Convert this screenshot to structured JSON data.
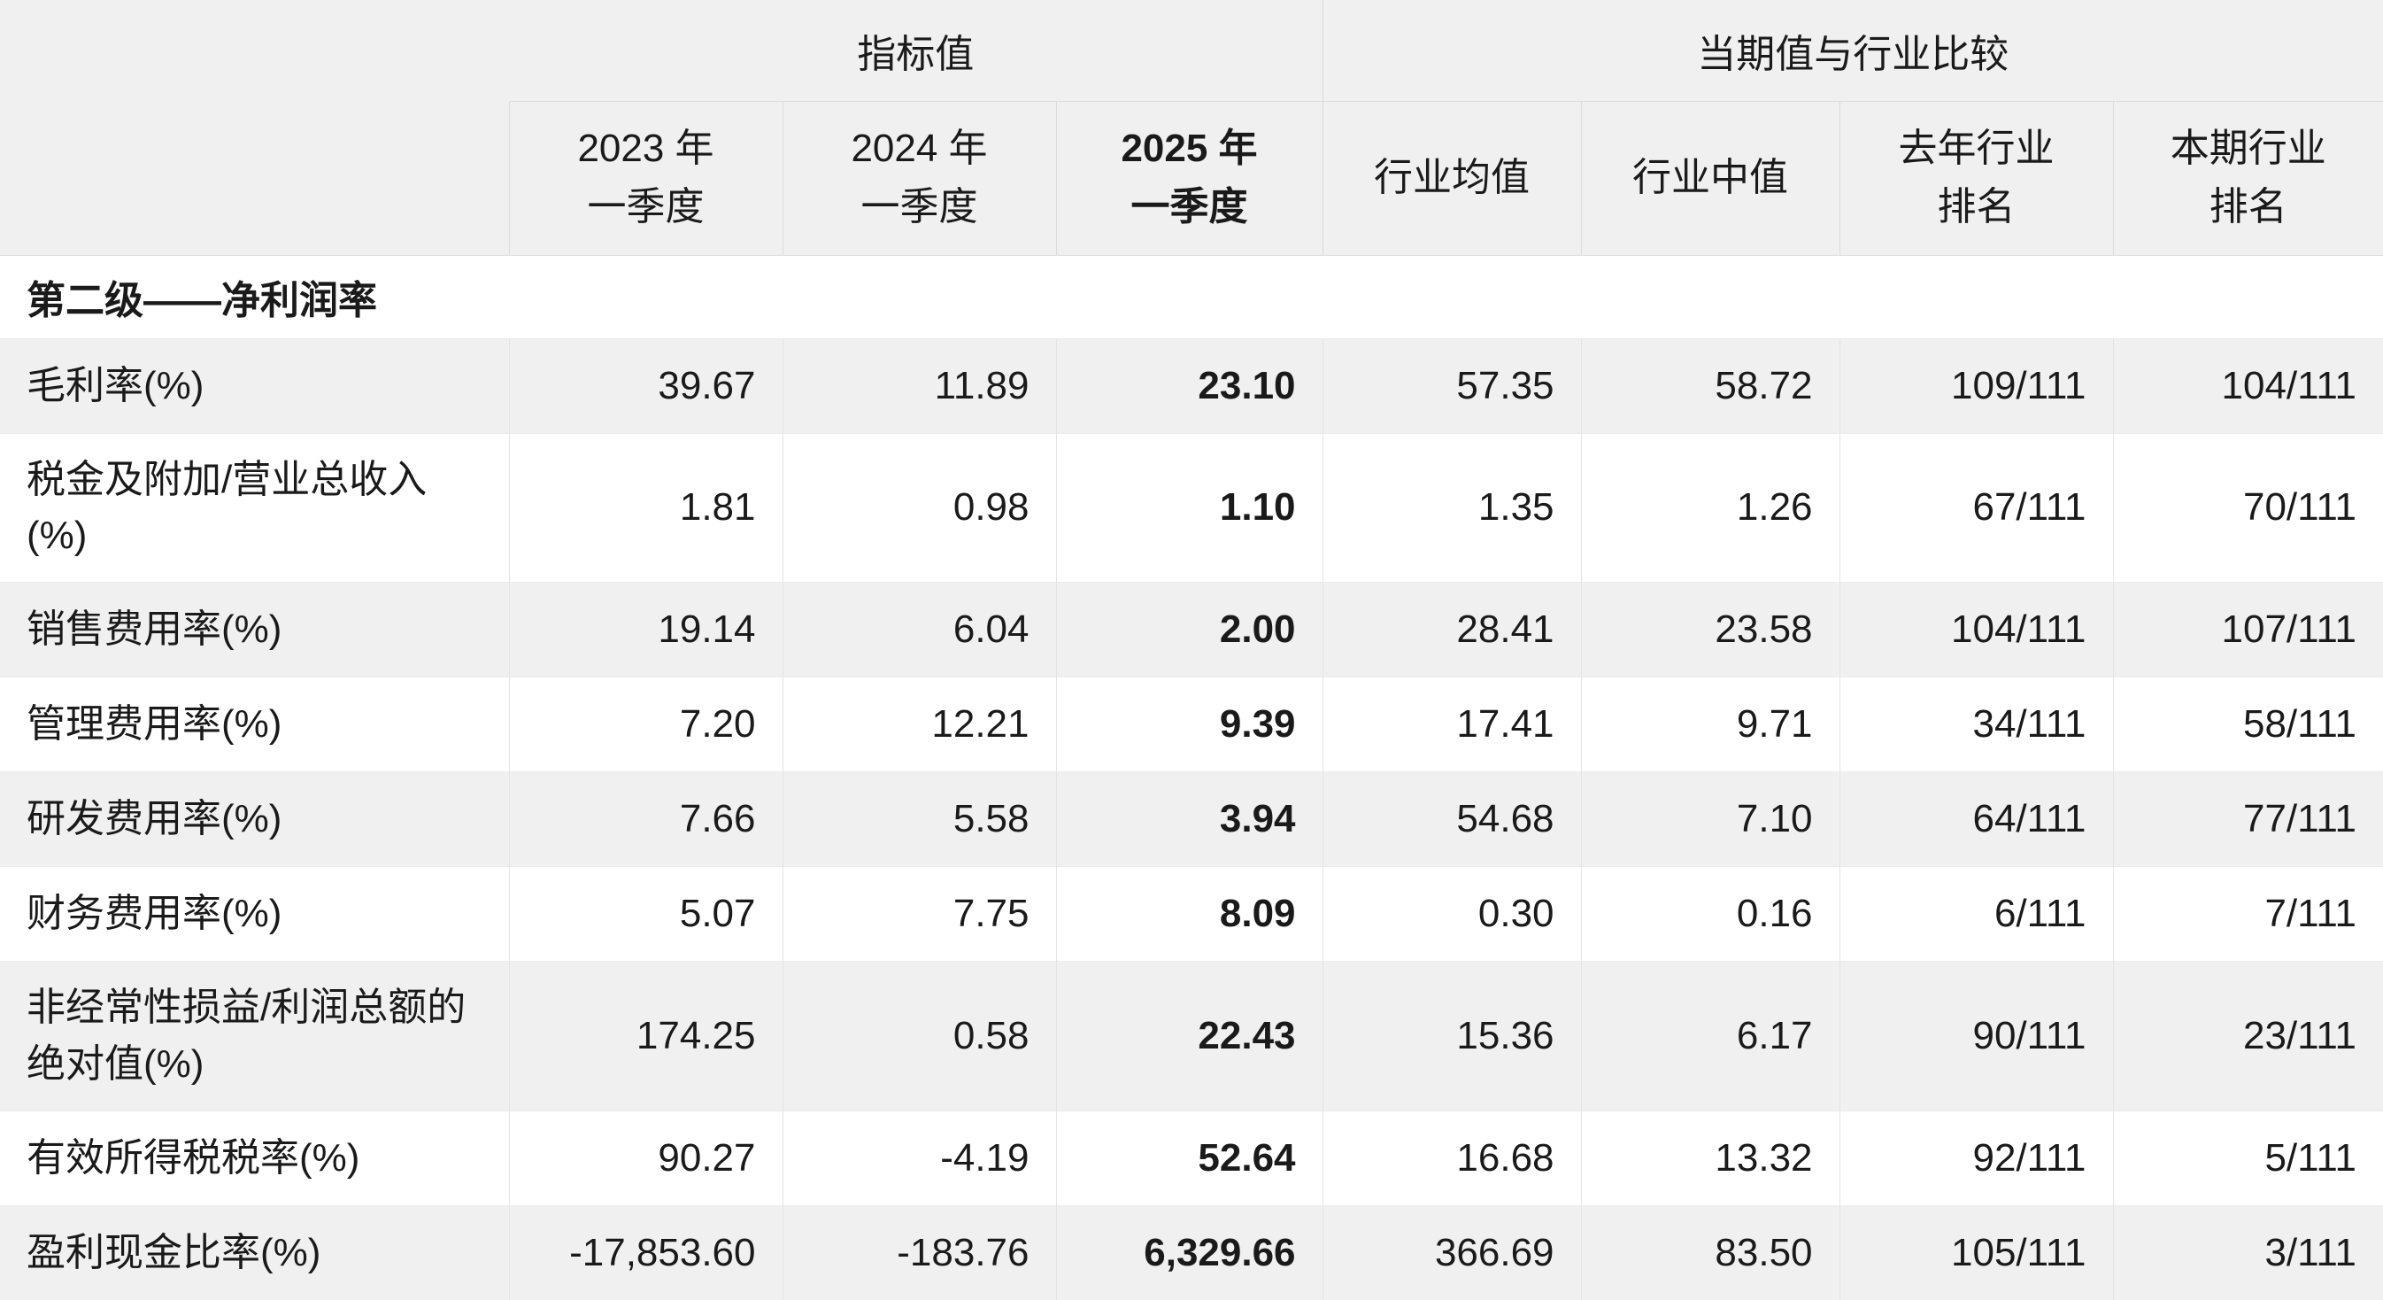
{
  "chart_data": {
    "type": "table",
    "title": "",
    "group_headers": [
      {
        "label": "指标值",
        "span": 3
      },
      {
        "label": "当期值与行业比较",
        "span": 4
      }
    ],
    "columns": [
      {
        "lines": [
          "2023 年",
          "一季度"
        ],
        "bold": false
      },
      {
        "lines": [
          "2024 年",
          "一季度"
        ],
        "bold": false
      },
      {
        "lines": [
          "2025 年",
          "一季度"
        ],
        "bold": true
      },
      {
        "lines": [
          "行业均值"
        ],
        "bold": false
      },
      {
        "lines": [
          "行业中值"
        ],
        "bold": false
      },
      {
        "lines": [
          "去年行业",
          "排名"
        ],
        "bold": false
      },
      {
        "lines": [
          "本期行业",
          "排名"
        ],
        "bold": false
      }
    ],
    "section_title": "第二级——净利润率",
    "bold_column_index": 2,
    "rows": [
      {
        "label": "毛利率(%)",
        "values": [
          "39.67",
          "11.89",
          "23.10",
          "57.35",
          "58.72",
          "109/111",
          "104/111"
        ]
      },
      {
        "label": "税金及附加/营业总收入(%)",
        "values": [
          "1.81",
          "0.98",
          "1.10",
          "1.35",
          "1.26",
          "67/111",
          "70/111"
        ]
      },
      {
        "label": "销售费用率(%)",
        "values": [
          "19.14",
          "6.04",
          "2.00",
          "28.41",
          "23.58",
          "104/111",
          "107/111"
        ]
      },
      {
        "label": "管理费用率(%)",
        "values": [
          "7.20",
          "12.21",
          "9.39",
          "17.41",
          "9.71",
          "34/111",
          "58/111"
        ]
      },
      {
        "label": "研发费用率(%)",
        "values": [
          "7.66",
          "5.58",
          "3.94",
          "54.68",
          "7.10",
          "64/111",
          "77/111"
        ]
      },
      {
        "label": "财务费用率(%)",
        "values": [
          "5.07",
          "7.75",
          "8.09",
          "0.30",
          "0.16",
          "6/111",
          "7/111"
        ]
      },
      {
        "label": "非经常性损益/利润总额的绝对值(%)",
        "values": [
          "174.25",
          "0.58",
          "22.43",
          "15.36",
          "6.17",
          "90/111",
          "23/111"
        ]
      },
      {
        "label": "有效所得税税率(%)",
        "values": [
          "90.27",
          "-4.19",
          "52.64",
          "16.68",
          "13.32",
          "92/111",
          "5/111"
        ]
      },
      {
        "label": "盈利现金比率(%)",
        "values": [
          "-17,853.60",
          "-183.76",
          "6,329.66",
          "366.69",
          "83.50",
          "105/111",
          "3/111"
        ]
      }
    ],
    "colors": {
      "stripe_bg": "#f0f0f1",
      "header_bg": "#f0f0f1",
      "border": "#e4e4e4",
      "text": "#1a1a1a"
    }
  }
}
